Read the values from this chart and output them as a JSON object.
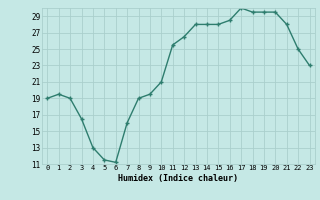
{
  "x": [
    0,
    1,
    2,
    3,
    4,
    5,
    6,
    7,
    8,
    9,
    10,
    11,
    12,
    13,
    14,
    15,
    16,
    17,
    18,
    19,
    20,
    21,
    22,
    23
  ],
  "y": [
    19,
    19.5,
    19,
    16.5,
    13,
    11.5,
    11.2,
    16,
    19,
    19.5,
    21,
    25.5,
    26.5,
    28,
    28,
    28,
    28.5,
    30,
    29.5,
    29.5,
    29.5,
    28,
    25,
    23
  ],
  "line_color": "#2e7d6e",
  "marker_color": "#2e7d6e",
  "bg_color": "#c5e8e5",
  "grid_color": "#aacfcc",
  "xlabel": "Humidex (Indice chaleur)",
  "ylim": [
    11,
    30
  ],
  "xlim": [
    -0.5,
    23.5
  ],
  "yticks": [
    11,
    13,
    15,
    17,
    19,
    21,
    23,
    25,
    27,
    29
  ],
  "xticks": [
    0,
    1,
    2,
    3,
    4,
    5,
    6,
    7,
    8,
    9,
    10,
    11,
    12,
    13,
    14,
    15,
    16,
    17,
    18,
    19,
    20,
    21,
    22,
    23
  ],
  "xtick_labels": [
    "0",
    "1",
    "2",
    "3",
    "4",
    "5",
    "6",
    "7",
    "8",
    "9",
    "10",
    "11",
    "12",
    "13",
    "14",
    "15",
    "16",
    "17",
    "18",
    "19",
    "20",
    "21",
    "22",
    "23"
  ]
}
